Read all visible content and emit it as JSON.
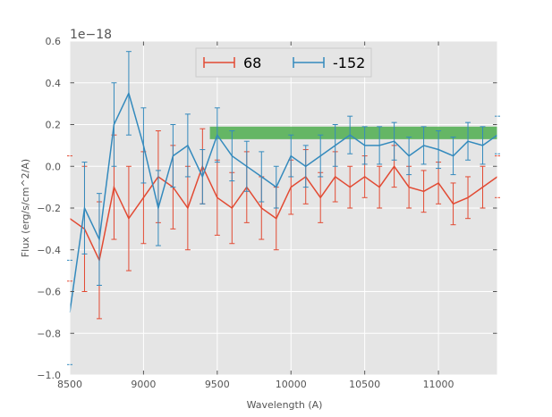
{
  "chart_data": {
    "type": "line",
    "title": "",
    "xlabel": "Wavelength (A)",
    "ylabel": "Flux (erg/s/cm^2/A)",
    "y_offset_label": "1e−18",
    "xlim": [
      8500,
      11400
    ],
    "ylim": [
      -1.0,
      0.6
    ],
    "x_ticks": [
      8500,
      9000,
      9500,
      10000,
      10500,
      11000
    ],
    "x_tick_labels": [
      "8500",
      "9000",
      "9500",
      "10000",
      "10500",
      "11000"
    ],
    "y_ticks": [
      -1.0,
      -0.8,
      -0.6,
      -0.4,
      -0.2,
      0.0,
      0.2,
      0.4,
      0.6
    ],
    "y_tick_labels": [
      "−1.0",
      "−0.8",
      "−0.6",
      "−0.4",
      "−0.2",
      "0.0",
      "0.2",
      "0.4",
      "0.6"
    ],
    "grid": true,
    "legend_position": "top-center",
    "band": {
      "x_start": 9450,
      "x_end": 11400,
      "y_low": 0.13,
      "y_high": 0.19,
      "color": "#3aa53a"
    },
    "series": [
      {
        "name": "68",
        "color": "#e24a33",
        "errorbars": true,
        "x": [
          8500,
          8600,
          8700,
          8800,
          8900,
          9000,
          9100,
          9200,
          9300,
          9400,
          9500,
          9600,
          9700,
          9800,
          9900,
          10000,
          10100,
          10200,
          10300,
          10400,
          10500,
          10600,
          10700,
          10800,
          10900,
          11000,
          11100,
          11200,
          11300,
          11400
        ],
        "y": [
          -0.25,
          -0.3,
          -0.45,
          -0.1,
          -0.25,
          -0.15,
          -0.05,
          -0.1,
          -0.2,
          0.0,
          -0.15,
          -0.2,
          -0.1,
          -0.2,
          -0.25,
          -0.1,
          -0.05,
          -0.15,
          -0.05,
          -0.1,
          -0.05,
          -0.1,
          0.0,
          -0.1,
          -0.12,
          -0.08,
          -0.18,
          -0.15,
          -0.1,
          -0.05
        ],
        "err": [
          0.3,
          0.3,
          0.28,
          0.25,
          0.25,
          0.22,
          0.22,
          0.2,
          0.2,
          0.18,
          0.18,
          0.17,
          0.17,
          0.15,
          0.15,
          0.13,
          0.13,
          0.12,
          0.12,
          0.1,
          0.1,
          0.1,
          0.1,
          0.1,
          0.1,
          0.1,
          0.1,
          0.1,
          0.1,
          0.1
        ]
      },
      {
        "name": "-152",
        "color": "#348abd",
        "errorbars": true,
        "x": [
          8500,
          8600,
          8700,
          8800,
          8900,
          9000,
          9100,
          9200,
          9300,
          9400,
          9500,
          9600,
          9700,
          9800,
          9900,
          10000,
          10100,
          10200,
          10300,
          10400,
          10500,
          10600,
          10700,
          10800,
          10900,
          11000,
          11100,
          11200,
          11300,
          11400
        ],
        "y": [
          -0.7,
          -0.2,
          -0.35,
          0.2,
          0.35,
          0.1,
          -0.2,
          0.05,
          0.1,
          -0.05,
          0.15,
          0.05,
          0.0,
          -0.05,
          -0.1,
          0.05,
          0.0,
          0.05,
          0.1,
          0.15,
          0.1,
          0.1,
          0.12,
          0.05,
          0.1,
          0.08,
          0.05,
          0.12,
          0.1,
          0.15
        ],
        "err": [
          0.25,
          0.22,
          0.22,
          0.2,
          0.2,
          0.18,
          0.18,
          0.15,
          0.15,
          0.13,
          0.13,
          0.12,
          0.12,
          0.12,
          0.1,
          0.1,
          0.1,
          0.1,
          0.1,
          0.09,
          0.09,
          0.09,
          0.09,
          0.09,
          0.09,
          0.09,
          0.09,
          0.09,
          0.09,
          0.09
        ]
      }
    ]
  }
}
